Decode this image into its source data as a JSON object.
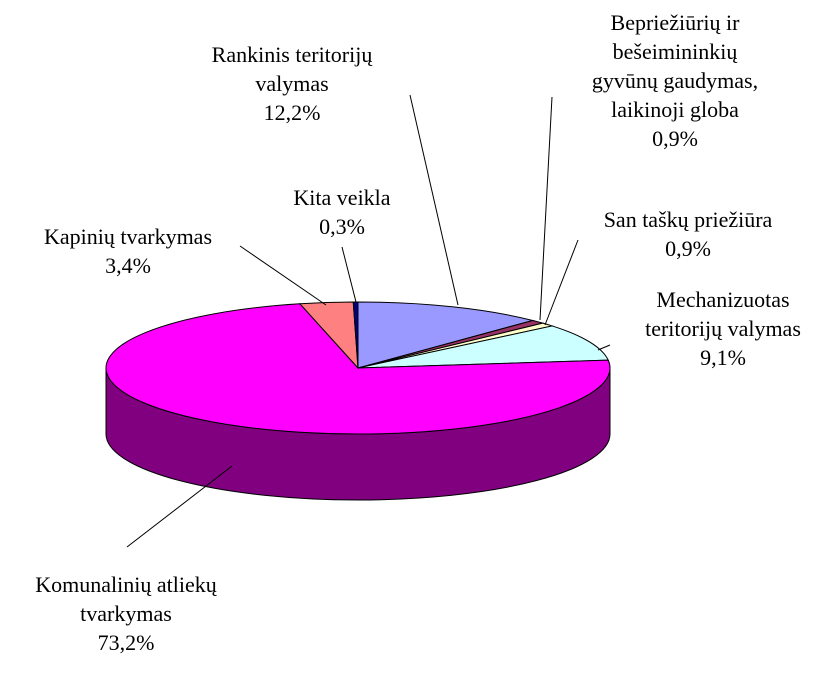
{
  "chart_data": {
    "type": "pie",
    "three_d": true,
    "categories": [
      "Rankinis teritorijų valymas",
      "Bepriežiūrių ir bešeimininkių gyvūnų gaudymas, laikinoji globa",
      "San taškų priežiūra",
      "Mechanizuotas teritorijų valymas",
      "Komunalinių atliekų tvarkymas",
      "Kapinių tvarkymas",
      "Kita veikla"
    ],
    "values": [
      12.2,
      0.9,
      0.9,
      9.1,
      73.2,
      3.4,
      0.3
    ],
    "value_labels": [
      "12,2%",
      "0,9%",
      "0,9%",
      "9,1%",
      "73,2%",
      "3,4%",
      "0,3%"
    ],
    "colors": [
      "#9999ff",
      "#993366",
      "#ffffcc",
      "#ccffff",
      "#ff00ff",
      "#ff8080",
      "#000080"
    ]
  }
}
